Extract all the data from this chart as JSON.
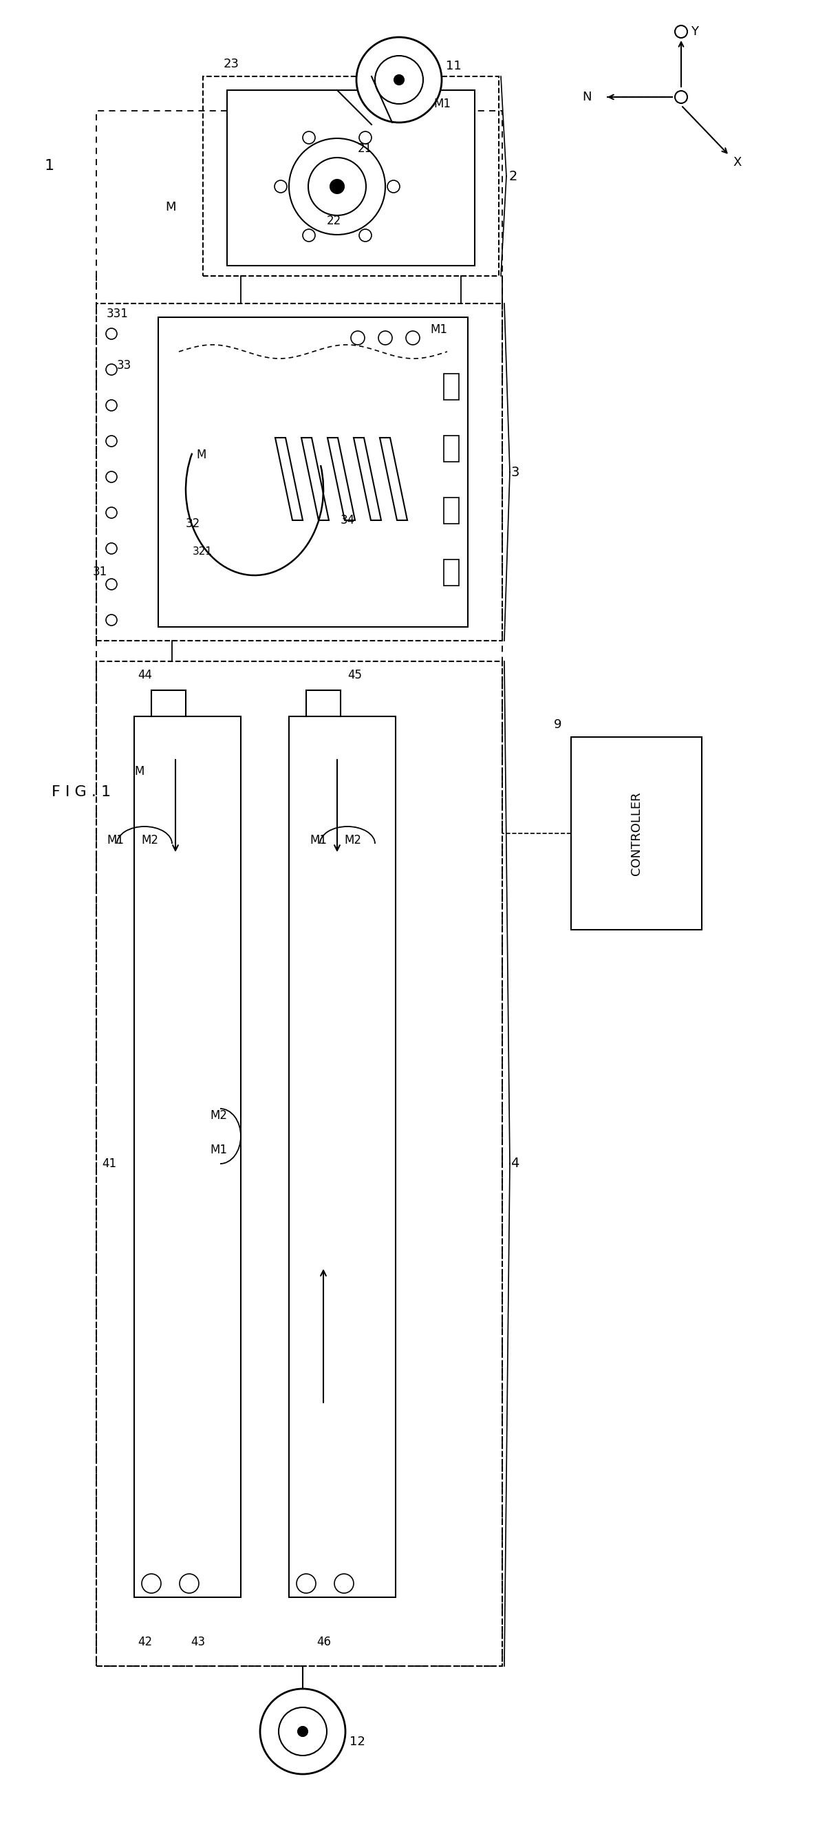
{
  "bg_color": "#ffffff",
  "lc": "#000000",
  "fig_label": "F I G . 1",
  "label_1": "1",
  "label_2": "2",
  "label_3": "3",
  "label_4": "4",
  "label_9": "9",
  "label_11": "11",
  "label_12": "12",
  "label_21": "21",
  "label_22": "22",
  "label_23": "23",
  "label_31": "31",
  "label_32": "32",
  "label_321": "321",
  "label_33": "33",
  "label_331": "331",
  "label_34": "34",
  "label_41": "41",
  "label_42": "42",
  "label_43": "43",
  "label_44": "44",
  "label_45": "45",
  "label_46": "46",
  "label_M": "M",
  "label_M1": "M1",
  "label_M2": "M2",
  "label_N": "N",
  "label_X": "X",
  "label_Y": "Y",
  "label_CONTROLLER": "CONTROLLER"
}
